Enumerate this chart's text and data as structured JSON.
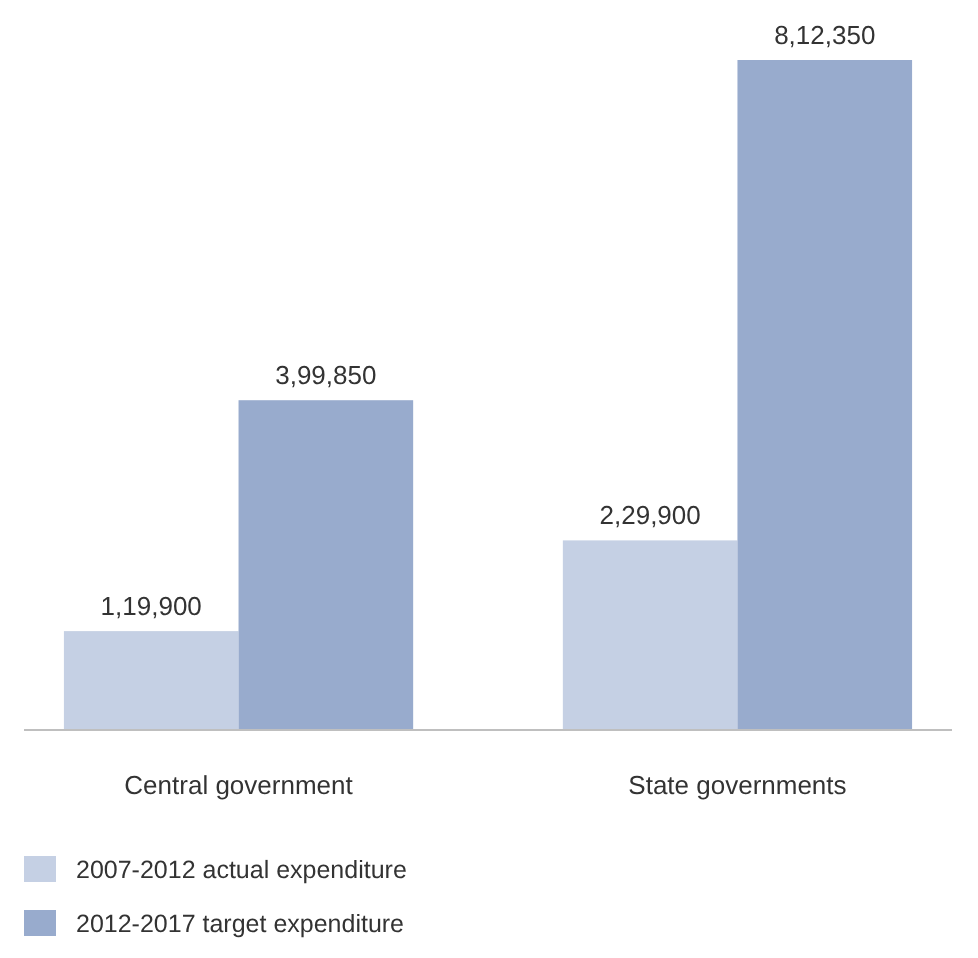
{
  "chart_data": {
    "type": "bar",
    "categories": [
      "Central government",
      "State governments"
    ],
    "series": [
      {
        "name": "2007-2012 actual expenditure",
        "color": "#c5d0e4",
        "values": [
          119900,
          229900
        ],
        "value_labels": [
          "1,19,900",
          "2,29,900"
        ]
      },
      {
        "name": "2012-2017 target expenditure",
        "color": "#98abcd",
        "values": [
          399850,
          812350
        ],
        "value_labels": [
          "3,99,850",
          "8,12,350"
        ]
      }
    ],
    "legend": "bottom left"
  }
}
